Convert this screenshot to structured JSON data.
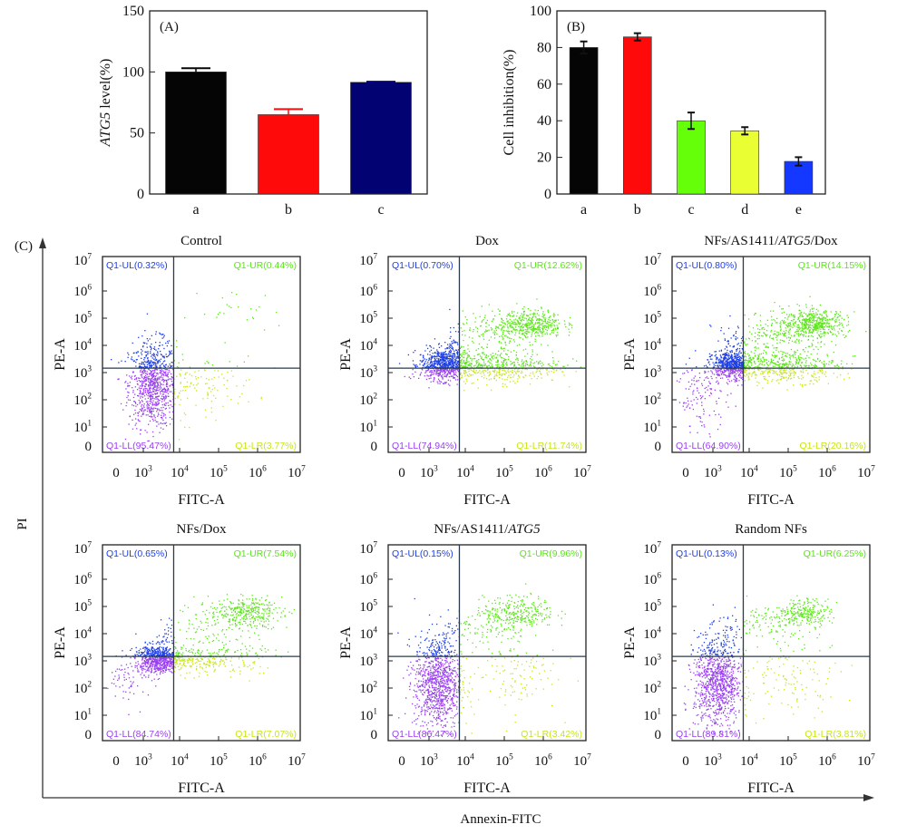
{
  "chart_data": [
    {
      "id": "A",
      "type": "bar",
      "panel_label": "(A)",
      "title": "",
      "xlabel": "",
      "ylabel_italic": "ATG5",
      "ylabel_rest": " level(%)",
      "ylim": [
        0,
        150
      ],
      "yticks": [
        0,
        50,
        100,
        150
      ],
      "categories": [
        "a",
        "b",
        "c"
      ],
      "values": [
        100,
        65,
        91.5
      ],
      "errors": [
        3,
        4.5,
        0.5
      ],
      "colors": [
        "#050505",
        "#ff0a0a",
        "#020272"
      ]
    },
    {
      "id": "B",
      "type": "bar",
      "panel_label": "(B)",
      "title": "",
      "xlabel": "",
      "ylabel": "Cell inhibition(%)",
      "ylim": [
        0,
        100
      ],
      "yticks": [
        0,
        20,
        40,
        60,
        80,
        100
      ],
      "categories": [
        "a",
        "b",
        "c",
        "d",
        "e"
      ],
      "values": [
        80,
        85.8,
        40,
        34.5,
        17.8
      ],
      "errors": [
        3.3,
        2,
        4.5,
        2,
        2.3
      ],
      "colors": [
        "#050505",
        "#ff0a0a",
        "#66ff0a",
        "#eaff33",
        "#1438ff"
      ]
    },
    {
      "id": "C",
      "type": "scatter",
      "panel_label": "(C)",
      "outer_xlabel": "Annexin-FITC",
      "outer_ylabel": "PI",
      "plot_xlabel": "FITC-A",
      "plot_ylabel": "PE-A",
      "tick_labels": [
        {
          "base": "0",
          "exp": ""
        },
        {
          "base": "10",
          "exp": "1"
        },
        {
          "base": "10",
          "exp": "2"
        },
        {
          "base": "10",
          "exp": "3"
        },
        {
          "base": "10",
          "exp": "4"
        },
        {
          "base": "10",
          "exp": "5"
        },
        {
          "base": "10",
          "exp": "6"
        },
        {
          "base": "10",
          "exp": "7"
        }
      ],
      "x_tick_labels": [
        {
          "base": "0",
          "exp": ""
        },
        {
          "base": "10",
          "exp": "3"
        },
        {
          "base": "10",
          "exp": "4"
        },
        {
          "base": "10",
          "exp": "5"
        },
        {
          "base": "10",
          "exp": "6"
        },
        {
          "base": "10",
          "exp": "7"
        }
      ],
      "quadrant_colors": {
        "UL": "#1f3fe6",
        "UR": "#5de61a",
        "LL": "#9a3ff2",
        "LR": "#c8e61a"
      },
      "panels": [
        {
          "title_parts": [
            {
              "t": "Control",
              "i": false
            }
          ],
          "UL": "Q1-UL(0.32%)",
          "UR": "Q1-UR(0.44%)",
          "LL": "Q1-LL(95.47%)",
          "LR": "Q1-LR(3.77%)"
        },
        {
          "title_parts": [
            {
              "t": "Dox",
              "i": false
            }
          ],
          "UL": "Q1-UL(0.70%)",
          "UR": "Q1-UR(12.62%)",
          "LL": "Q1-LL(74.94%)",
          "LR": "Q1-LR(11.74%)"
        },
        {
          "title_parts": [
            {
              "t": "NFs/AS1411/",
              "i": false
            },
            {
              "t": "ATG5",
              "i": true
            },
            {
              "t": "/Dox",
              "i": false
            }
          ],
          "UL": "Q1-UL(0.80%)",
          "UR": "Q1-UR(14.15%)",
          "LL": "Q1-LL(64.90%)",
          "LR": "Q1-LR(20.16%)"
        },
        {
          "title_parts": [
            {
              "t": "NFs/Dox",
              "i": false
            }
          ],
          "UL": "Q1-UL(0.65%)",
          "UR": "Q1-UR(7.54%)",
          "LL": "Q1-LL(84.74%)",
          "LR": "Q1-LR(7.07%)"
        },
        {
          "title_parts": [
            {
              "t": "NFs/AS1411/",
              "i": false
            },
            {
              "t": "ATG5",
              "i": true
            }
          ],
          "UL": "Q1-UL(0.15%)",
          "UR": "Q1-UR(9.96%)",
          "LL": "Q1-LL(86.47%)",
          "LR": "Q1-LR(3.42%)"
        },
        {
          "title_parts": [
            {
              "t": "Random NFs",
              "i": false
            }
          ],
          "UL": "Q1-UL(0.13%)",
          "UR": "Q1-UR(6.25%)",
          "LL": "Q1-LL(89.81%)",
          "LR": "Q1-LR(3.81%)"
        }
      ]
    }
  ]
}
